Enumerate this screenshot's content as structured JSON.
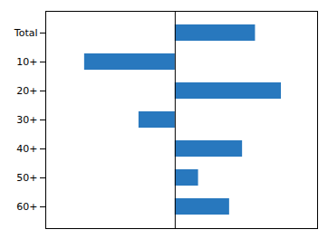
{
  "chart_data": {
    "type": "bar",
    "orientation": "horizontal",
    "categories": [
      "60+",
      "50+",
      "40+",
      "30+",
      "20+",
      "10+",
      "Total"
    ],
    "values": [
      42,
      18,
      52,
      -28,
      82,
      -70,
      62
    ],
    "color": "#2878be",
    "xlim": [
      -100,
      110
    ],
    "grid": false,
    "tick_labels": "y"
  }
}
